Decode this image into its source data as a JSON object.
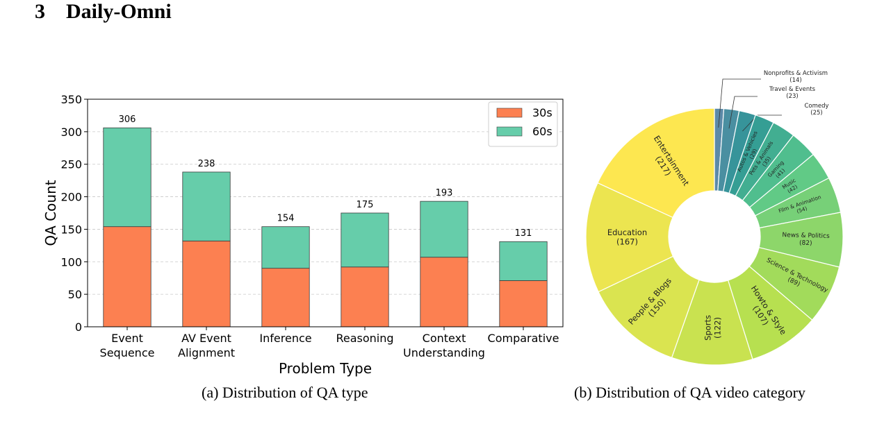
{
  "section": {
    "number": "3",
    "title": "Daily-Omni"
  },
  "captions": {
    "a": "(a)  Distribution of QA type",
    "b": "(b)  Distribution of QA video category"
  },
  "colors": {
    "s30": "#FC8051",
    "s60": "#66CDAA"
  },
  "chart_data": [
    {
      "type": "bar",
      "stacked": true,
      "categories": [
        "Event\nSequence",
        "AV Event\nAlignment",
        "Inference",
        "Reasoning",
        "Context\nUnderstanding",
        "Comparative"
      ],
      "series": [
        {
          "name": "30s",
          "values": [
            154,
            132,
            90,
            92,
            107,
            71
          ]
        },
        {
          "name": "60s",
          "values": [
            152,
            106,
            64,
            83,
            86,
            60
          ]
        }
      ],
      "totals": [
        306,
        238,
        154,
        175,
        193,
        131
      ],
      "xlabel": "Problem Type",
      "ylabel": "QA Count",
      "ylim": [
        0,
        350
      ],
      "yticks": [
        0,
        50,
        100,
        150,
        200,
        250,
        300,
        350
      ],
      "grid": true,
      "legend": "top-right"
    },
    {
      "type": "pie",
      "donut": true,
      "slices": [
        {
          "label": "Nonprofits & Activism",
          "value": 14
        },
        {
          "label": "Travel & Events",
          "value": 23
        },
        {
          "label": "Comedy",
          "value": 25
        },
        {
          "label": "Autos & Vehicles",
          "value": 29
        },
        {
          "label": "Pets & Animals",
          "value": 35
        },
        {
          "label": "Gaming",
          "value": 41
        },
        {
          "label": "Music",
          "value": 42
        },
        {
          "label": "Film & Animation",
          "value": 54
        },
        {
          "label": "News & Politics",
          "value": 82
        },
        {
          "label": "Science & Technology",
          "value": 89
        },
        {
          "label": "Howto & Style",
          "value": 107
        },
        {
          "label": "Sports",
          "value": 122
        },
        {
          "label": "People & Blogs",
          "value": 150
        },
        {
          "label": "Education",
          "value": 167
        },
        {
          "label": "Entertainment",
          "value": 217
        }
      ]
    }
  ]
}
